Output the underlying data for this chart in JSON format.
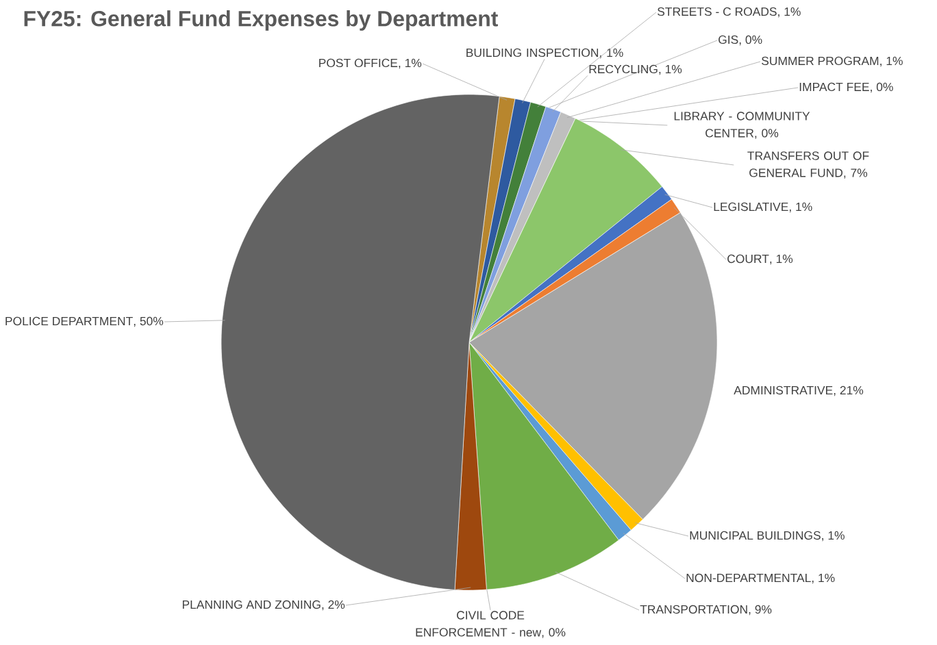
{
  "chart_data": {
    "type": "pie",
    "title": "FY25: General Fund Expenses by Department",
    "categories": [
      "POST OFFICE",
      "BUILDING INSPECTION",
      "STREETS - C ROADS",
      "GIS",
      "RECYCLING",
      "SUMMER PROGRAM",
      "IMPACT FEE",
      "LIBRARY - COMMUNITY CENTER",
      "TRANSFERS OUT OF GENERAL FUND",
      "LEGISLATIVE",
      "COURT",
      "ADMINISTRATIVE",
      "MUNICIPAL BUILDINGS",
      "NON-DEPARTMENTAL",
      "TRANSPORTATION",
      "CIVIL CODE ENFORCEMENT - new",
      "PLANNING AND ZONING",
      "POLICE DEPARTMENT"
    ],
    "values": [
      1,
      1,
      1,
      0,
      1,
      1,
      0,
      0,
      7,
      1,
      1,
      21,
      1,
      1,
      9,
      0,
      2,
      50
    ],
    "colors": [
      "#b8862e",
      "#2e5aa0",
      "#43803a",
      "#f0903a",
      "#7f9fdf",
      "#bfbfbf",
      "#ffc000",
      "#9dc3e6",
      "#8cc66a",
      "#4472c4",
      "#ed7d31",
      "#a5a5a5",
      "#ffc000",
      "#5b9bd5",
      "#70ad47",
      "#264478",
      "#9e480e",
      "#636363"
    ],
    "value_labels": [
      ", 1%",
      ", 1%",
      ", 1%",
      ", 0%",
      ", 1%",
      ", 1%",
      ", 0%",
      ", 0%",
      ", 7%",
      ", 1%",
      ", 1%",
      ", 21%",
      ", 1%",
      ", 1%",
      ", 9%",
      ", 0%",
      ", 2%",
      ", 50%"
    ]
  }
}
